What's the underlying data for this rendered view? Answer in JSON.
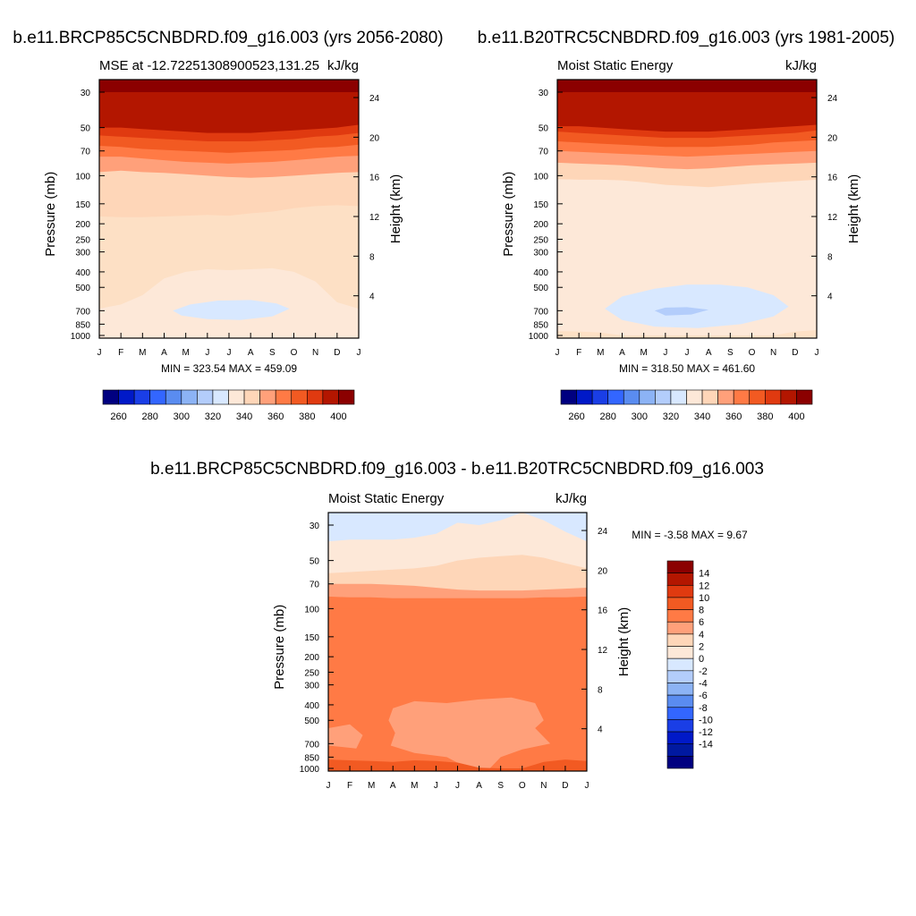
{
  "chart_data": [
    {
      "type": "heatmap",
      "title": "b.e11.BRCP85C5CNBDRD.f09_g16.003 (yrs 2056-2080)",
      "left_string": "MSE at -12.72251308900523,131.25",
      "right_string": "kJ/kg",
      "ylabel": "Pressure (mb)",
      "ylabel_right": "Height (km)",
      "stats": "MIN = 323.54 MAX = 459.09",
      "y_ticks": [
        "30",
        "50",
        "70",
        "100",
        "150",
        "200",
        "250",
        "300",
        "400",
        "500",
        "700",
        "850",
        "1000"
      ],
      "height_ticks": [
        "24",
        "20",
        "16",
        "12",
        "8",
        "4"
      ],
      "x_ticks": [
        "J",
        "F",
        "M",
        "A",
        "M",
        "J",
        "J",
        "A",
        "S",
        "O",
        "N",
        "D",
        "J"
      ],
      "legend_labels": [
        "260",
        "280",
        "300",
        "320",
        "340",
        "360",
        "380",
        "400"
      ],
      "bands": [
        {
          "color": "#fde0c5",
          "top_p": [
            880,
            875,
            880,
            870,
            890,
            915,
            950,
            935,
            900,
            880,
            865,
            870,
            880
          ]
        },
        {
          "color": "#fed6b8",
          "top_p": [
            180,
            182,
            182,
            180,
            178,
            176,
            178,
            172,
            168,
            160,
            155,
            153,
            155
          ]
        },
        {
          "color": "#ffa07a",
          "top_p": [
            95,
            93,
            95,
            96,
            98,
            100,
            102,
            103,
            102,
            100,
            98,
            96,
            95
          ]
        },
        {
          "color": "#ff7a45",
          "top_p": [
            76,
            76,
            78,
            80,
            82,
            83,
            84,
            83,
            82,
            80,
            78,
            76,
            75
          ]
        },
        {
          "color": "#f25a22",
          "top_p": [
            65,
            66,
            68,
            69,
            70,
            71,
            72,
            71,
            70,
            69,
            67,
            66,
            64
          ]
        },
        {
          "color": "#e03a10",
          "top_p": [
            56,
            57,
            58,
            59,
            60,
            61,
            61,
            61,
            60,
            59,
            57,
            56,
            54
          ]
        },
        {
          "color": "#b31600",
          "top_p": [
            50,
            50,
            51,
            52,
            53,
            54,
            54,
            54,
            53,
            52,
            51,
            50,
            48
          ]
        },
        {
          "color": "#8b0000",
          "top_p": [
            30,
            30,
            30,
            30,
            30,
            30,
            30,
            30,
            30,
            30,
            30,
            30,
            30
          ]
        }
      ],
      "low_bands": [
        {
          "color": "#fde8d8",
          "y_p": [
            680,
            640,
            560,
            440,
            400,
            385,
            390,
            385,
            380,
            400,
            460,
            620,
            680
          ]
        },
        {
          "color": "#d8e8ff",
          "points": [
            [
              3.4,
              700
            ],
            [
              4.2,
              640
            ],
            [
              5.5,
              605
            ],
            [
              7.0,
              600
            ],
            [
              8.2,
              630
            ],
            [
              8.8,
              680
            ],
            [
              8.0,
              760
            ],
            [
              6.5,
              800
            ],
            [
              5.0,
              790
            ],
            [
              3.8,
              750
            ]
          ]
        }
      ]
    },
    {
      "type": "heatmap",
      "title": "b.e11.B20TRC5CNBDRD.f09_g16.003 (yrs 1981-2005)",
      "left_string": "Moist Static Energy",
      "right_string": "kJ/kg",
      "ylabel": "Pressure (mb)",
      "ylabel_right": "Height (km)",
      "stats": "MIN = 318.50 MAX = 461.60",
      "y_ticks": [
        "30",
        "50",
        "70",
        "100",
        "150",
        "200",
        "250",
        "300",
        "400",
        "500",
        "700",
        "850",
        "1000"
      ],
      "height_ticks": [
        "24",
        "20",
        "16",
        "12",
        "8",
        "4"
      ],
      "x_ticks": [
        "J",
        "F",
        "M",
        "A",
        "M",
        "J",
        "J",
        "A",
        "S",
        "O",
        "N",
        "D",
        "J"
      ],
      "legend_labels": [
        "260",
        "280",
        "300",
        "320",
        "340",
        "360",
        "380",
        "400"
      ],
      "bands": [
        {
          "color": "#fde8d8",
          "top_p": [
            300,
            290,
            270,
            240,
            215,
            210,
            225,
            215,
            210,
            200,
            220,
            250,
            300
          ]
        },
        {
          "color": "#fed6b8",
          "top_p": [
            105,
            106,
            106,
            107,
            110,
            114,
            116,
            118,
            115,
            112,
            110,
            108,
            106
          ]
        },
        {
          "color": "#ffa07a",
          "top_p": [
            83,
            84,
            85,
            86,
            88,
            90,
            91,
            90,
            88,
            86,
            85,
            84,
            83
          ]
        },
        {
          "color": "#ff7a45",
          "top_p": [
            70,
            71,
            72,
            73,
            74,
            75,
            76,
            75,
            74,
            73,
            72,
            71,
            70
          ]
        },
        {
          "color": "#f25a22",
          "top_p": [
            61,
            62,
            63,
            64,
            65,
            66,
            66,
            66,
            65,
            64,
            62,
            61,
            60
          ]
        },
        {
          "color": "#e03a10",
          "top_p": [
            53,
            54,
            55,
            56,
            57,
            58,
            58,
            58,
            57,
            56,
            55,
            54,
            52
          ]
        },
        {
          "color": "#b31600",
          "top_p": [
            49,
            49,
            50,
            51,
            52,
            53,
            53,
            53,
            52,
            51,
            50,
            49,
            48
          ]
        },
        {
          "color": "#8b0000",
          "top_p": [
            30,
            30,
            30,
            30,
            30,
            30,
            30,
            30,
            30,
            30,
            30,
            30,
            30
          ]
        }
      ],
      "low_bands": [
        {
          "color": "#fde0c5",
          "y_p": [
            940,
            945,
            960,
            1000,
            1000,
            1000,
            1000,
            1000,
            1000,
            1000,
            1000,
            945,
            925
          ]
        },
        {
          "color": "#d8e8ff",
          "points": [
            [
              2.2,
              680
            ],
            [
              3.0,
              570
            ],
            [
              4.5,
              510
            ],
            [
              6.0,
              480
            ],
            [
              7.5,
              480
            ],
            [
              8.8,
              500
            ],
            [
              10.0,
              560
            ],
            [
              10.7,
              660
            ],
            [
              10.0,
              760
            ],
            [
              8.5,
              850
            ],
            [
              6.5,
              900
            ],
            [
              4.5,
              880
            ],
            [
              3.0,
              800
            ]
          ]
        },
        {
          "color": "#b3cdfb",
          "points": [
            [
              4.5,
              700
            ],
            [
              5.0,
              670
            ],
            [
              6.0,
              665
            ],
            [
              7.0,
              690
            ],
            [
              6.2,
              740
            ],
            [
              5.0,
              750
            ]
          ]
        }
      ]
    },
    {
      "type": "heatmap",
      "title": "b.e11.BRCP85C5CNBDRD.f09_g16.003 - b.e11.B20TRC5CNBDRD.f09_g16.003",
      "left_string": "Moist Static Energy",
      "right_string": "kJ/kg",
      "ylabel": "Pressure (mb)",
      "ylabel_right": "Height (km)",
      "stats": "MIN =  -3.58 MAX =   9.67",
      "y_ticks": [
        "30",
        "50",
        "70",
        "100",
        "150",
        "200",
        "250",
        "300",
        "400",
        "500",
        "700",
        "850",
        "1000"
      ],
      "height_ticks": [
        "24",
        "20",
        "16",
        "12",
        "8",
        "4"
      ],
      "x_ticks": [
        "J",
        "F",
        "M",
        "A",
        "M",
        "J",
        "J",
        "A",
        "S",
        "O",
        "N",
        "D",
        "J"
      ],
      "legend_labels": [
        "14",
        "12",
        "10",
        "8",
        "6",
        "4",
        "2",
        "0",
        "-2",
        "-4",
        "-6",
        "-8",
        "-10",
        "-12",
        "-14"
      ],
      "bands": [
        {
          "color": "#ff7a45",
          "top_p": [
            100,
            100,
            100,
            100,
            100,
            100,
            100,
            100,
            100,
            100,
            100,
            100,
            100
          ]
        },
        {
          "color": "#ffa07a",
          "top_p": [
            84,
            85,
            85,
            86,
            86,
            86,
            86,
            86,
            86,
            86,
            85,
            85,
            84
          ]
        },
        {
          "color": "#fed6b8",
          "top_p": [
            70,
            70,
            70,
            71,
            72,
            74,
            76,
            77,
            77,
            77,
            76,
            75,
            74
          ]
        },
        {
          "color": "#fde8d8",
          "top_p": [
            60,
            59,
            58,
            57,
            56,
            54,
            50,
            48,
            47,
            46,
            48,
            52,
            56
          ]
        },
        {
          "color": "#d8e8ff",
          "top_p": [
            38,
            37,
            37,
            37,
            36,
            34,
            29,
            30,
            28,
            25,
            28,
            33,
            38
          ]
        },
        {
          "color": "#b3cdfb",
          "top_p": [
            20,
            20,
            20,
            20,
            20,
            20,
            20,
            20,
            20,
            20,
            20,
            20,
            20
          ]
        }
      ],
      "low_bands": [
        {
          "color": "#ffa07a",
          "points": [
            [
              0,
              560
            ],
            [
              1.0,
              530
            ],
            [
              1.6,
              620
            ],
            [
              1.3,
              750
            ],
            [
              0,
              720
            ]
          ]
        },
        {
          "color": "#ffa07a",
          "points": [
            [
              2.8,
              500
            ],
            [
              3.0,
              420
            ],
            [
              4.0,
              380
            ],
            [
              5.5,
              390
            ],
            [
              7.0,
              370
            ],
            [
              8.5,
              360
            ],
            [
              9.6,
              390
            ],
            [
              10.0,
              500
            ],
            [
              9.6,
              560
            ],
            [
              10.3,
              700
            ],
            [
              9.0,
              760
            ],
            [
              8.0,
              850
            ],
            [
              7.5,
              1000
            ],
            [
              6.5,
              1000
            ],
            [
              5.5,
              850
            ],
            [
              4.0,
              800
            ],
            [
              2.9,
              720
            ],
            [
              3.1,
              600
            ]
          ]
        },
        {
          "color": "#f25a22",
          "y_p": [
            880,
            890,
            900,
            910,
            890,
            900,
            920,
            990,
            1000,
            1000,
            910,
            880,
            900
          ]
        }
      ]
    }
  ]
}
